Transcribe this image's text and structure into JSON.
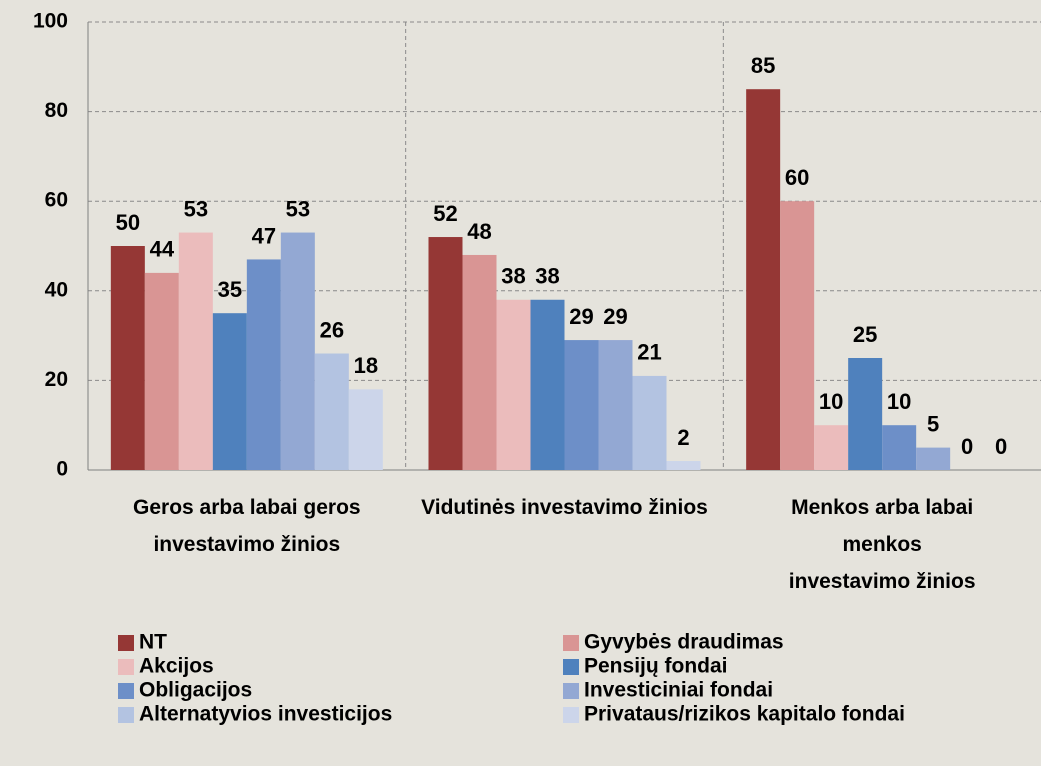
{
  "chart_data": {
    "type": "bar",
    "categories": [
      "Geros arba labai geros investavimo žinios",
      "Vidutinės investavimo žinios",
      "Menkos arba labai menkos investavimo žinios"
    ],
    "series": [
      {
        "name": "NT",
        "color": "#953735",
        "values": [
          50,
          52,
          85
        ]
      },
      {
        "name": "Gyvybės draudimas",
        "color": "#d99594",
        "values": [
          44,
          48,
          60
        ]
      },
      {
        "name": "Akcijos",
        "color": "#ebbcbc",
        "values": [
          53,
          38,
          10
        ]
      },
      {
        "name": "Pensijų fondai",
        "color": "#4f81bd",
        "values": [
          35,
          38,
          25
        ]
      },
      {
        "name": "Obligacijos",
        "color": "#6d8fc8",
        "values": [
          47,
          29,
          10
        ]
      },
      {
        "name": "Investiciniai fondai",
        "color": "#93a8d3",
        "values": [
          53,
          29,
          5
        ]
      },
      {
        "name": "Alternatyvios investicijos",
        "color": "#b3c3e1",
        "values": [
          26,
          21,
          0
        ]
      },
      {
        "name": "Privataus/rizikos kapitalo fondai",
        "color": "#ccd5ea",
        "values": [
          18,
          2,
          0
        ]
      }
    ],
    "ylim": [
      0,
      100
    ],
    "yticks": [
      0,
      20,
      40,
      60,
      80,
      100
    ],
    "grid": true,
    "legend": "bottom"
  }
}
